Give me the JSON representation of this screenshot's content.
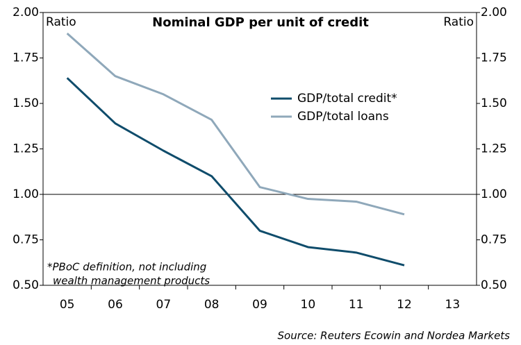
{
  "chart_data": {
    "type": "line",
    "title": "Nominal GDP per unit of credit",
    "ylabel": "Ratio",
    "y2label": "Ratio",
    "categories": [
      "05",
      "06",
      "07",
      "08",
      "09",
      "10",
      "11",
      "12",
      "13"
    ],
    "series": [
      {
        "name": "GDP/total credit*",
        "color": "#0f4c6b",
        "values": [
          1.64,
          1.39,
          1.24,
          1.1,
          0.8,
          0.71,
          0.68,
          0.61,
          null
        ]
      },
      {
        "name": "GDP/total loans",
        "color": "#8fa8ba",
        "values": [
          1.885,
          1.65,
          1.55,
          1.41,
          1.04,
          0.975,
          0.96,
          0.89,
          null
        ]
      }
    ],
    "ylim": [
      0.5,
      2.0
    ],
    "yticks": [
      {
        "value": 0.5,
        "label": "0.50"
      },
      {
        "value": 0.75,
        "label": "0.75"
      },
      {
        "value": 1.0,
        "label": "1.00"
      },
      {
        "value": 1.25,
        "label": "1.25"
      },
      {
        "value": 1.5,
        "label": "1.50"
      },
      {
        "value": 1.75,
        "label": "1.75"
      },
      {
        "value": 2.0,
        "label": "2.00"
      }
    ],
    "y2lim": [
      0.5,
      2.0
    ],
    "y2ticks": [
      {
        "value": 0.5,
        "label": "0.50"
      },
      {
        "value": 0.75,
        "label": "0.75"
      },
      {
        "value": 1.0,
        "label": "1.00"
      },
      {
        "value": 1.25,
        "label": "1.25"
      },
      {
        "value": 1.5,
        "label": "1.50"
      },
      {
        "value": 1.75,
        "label": "1.75"
      },
      {
        "value": 2.0,
        "label": "2.00"
      }
    ],
    "reference_line": 1.0,
    "note": [
      "*PBoC definition, not including",
      "wealth management products"
    ],
    "source": "Source: Reuters Ecowin and Nordea Markets"
  }
}
